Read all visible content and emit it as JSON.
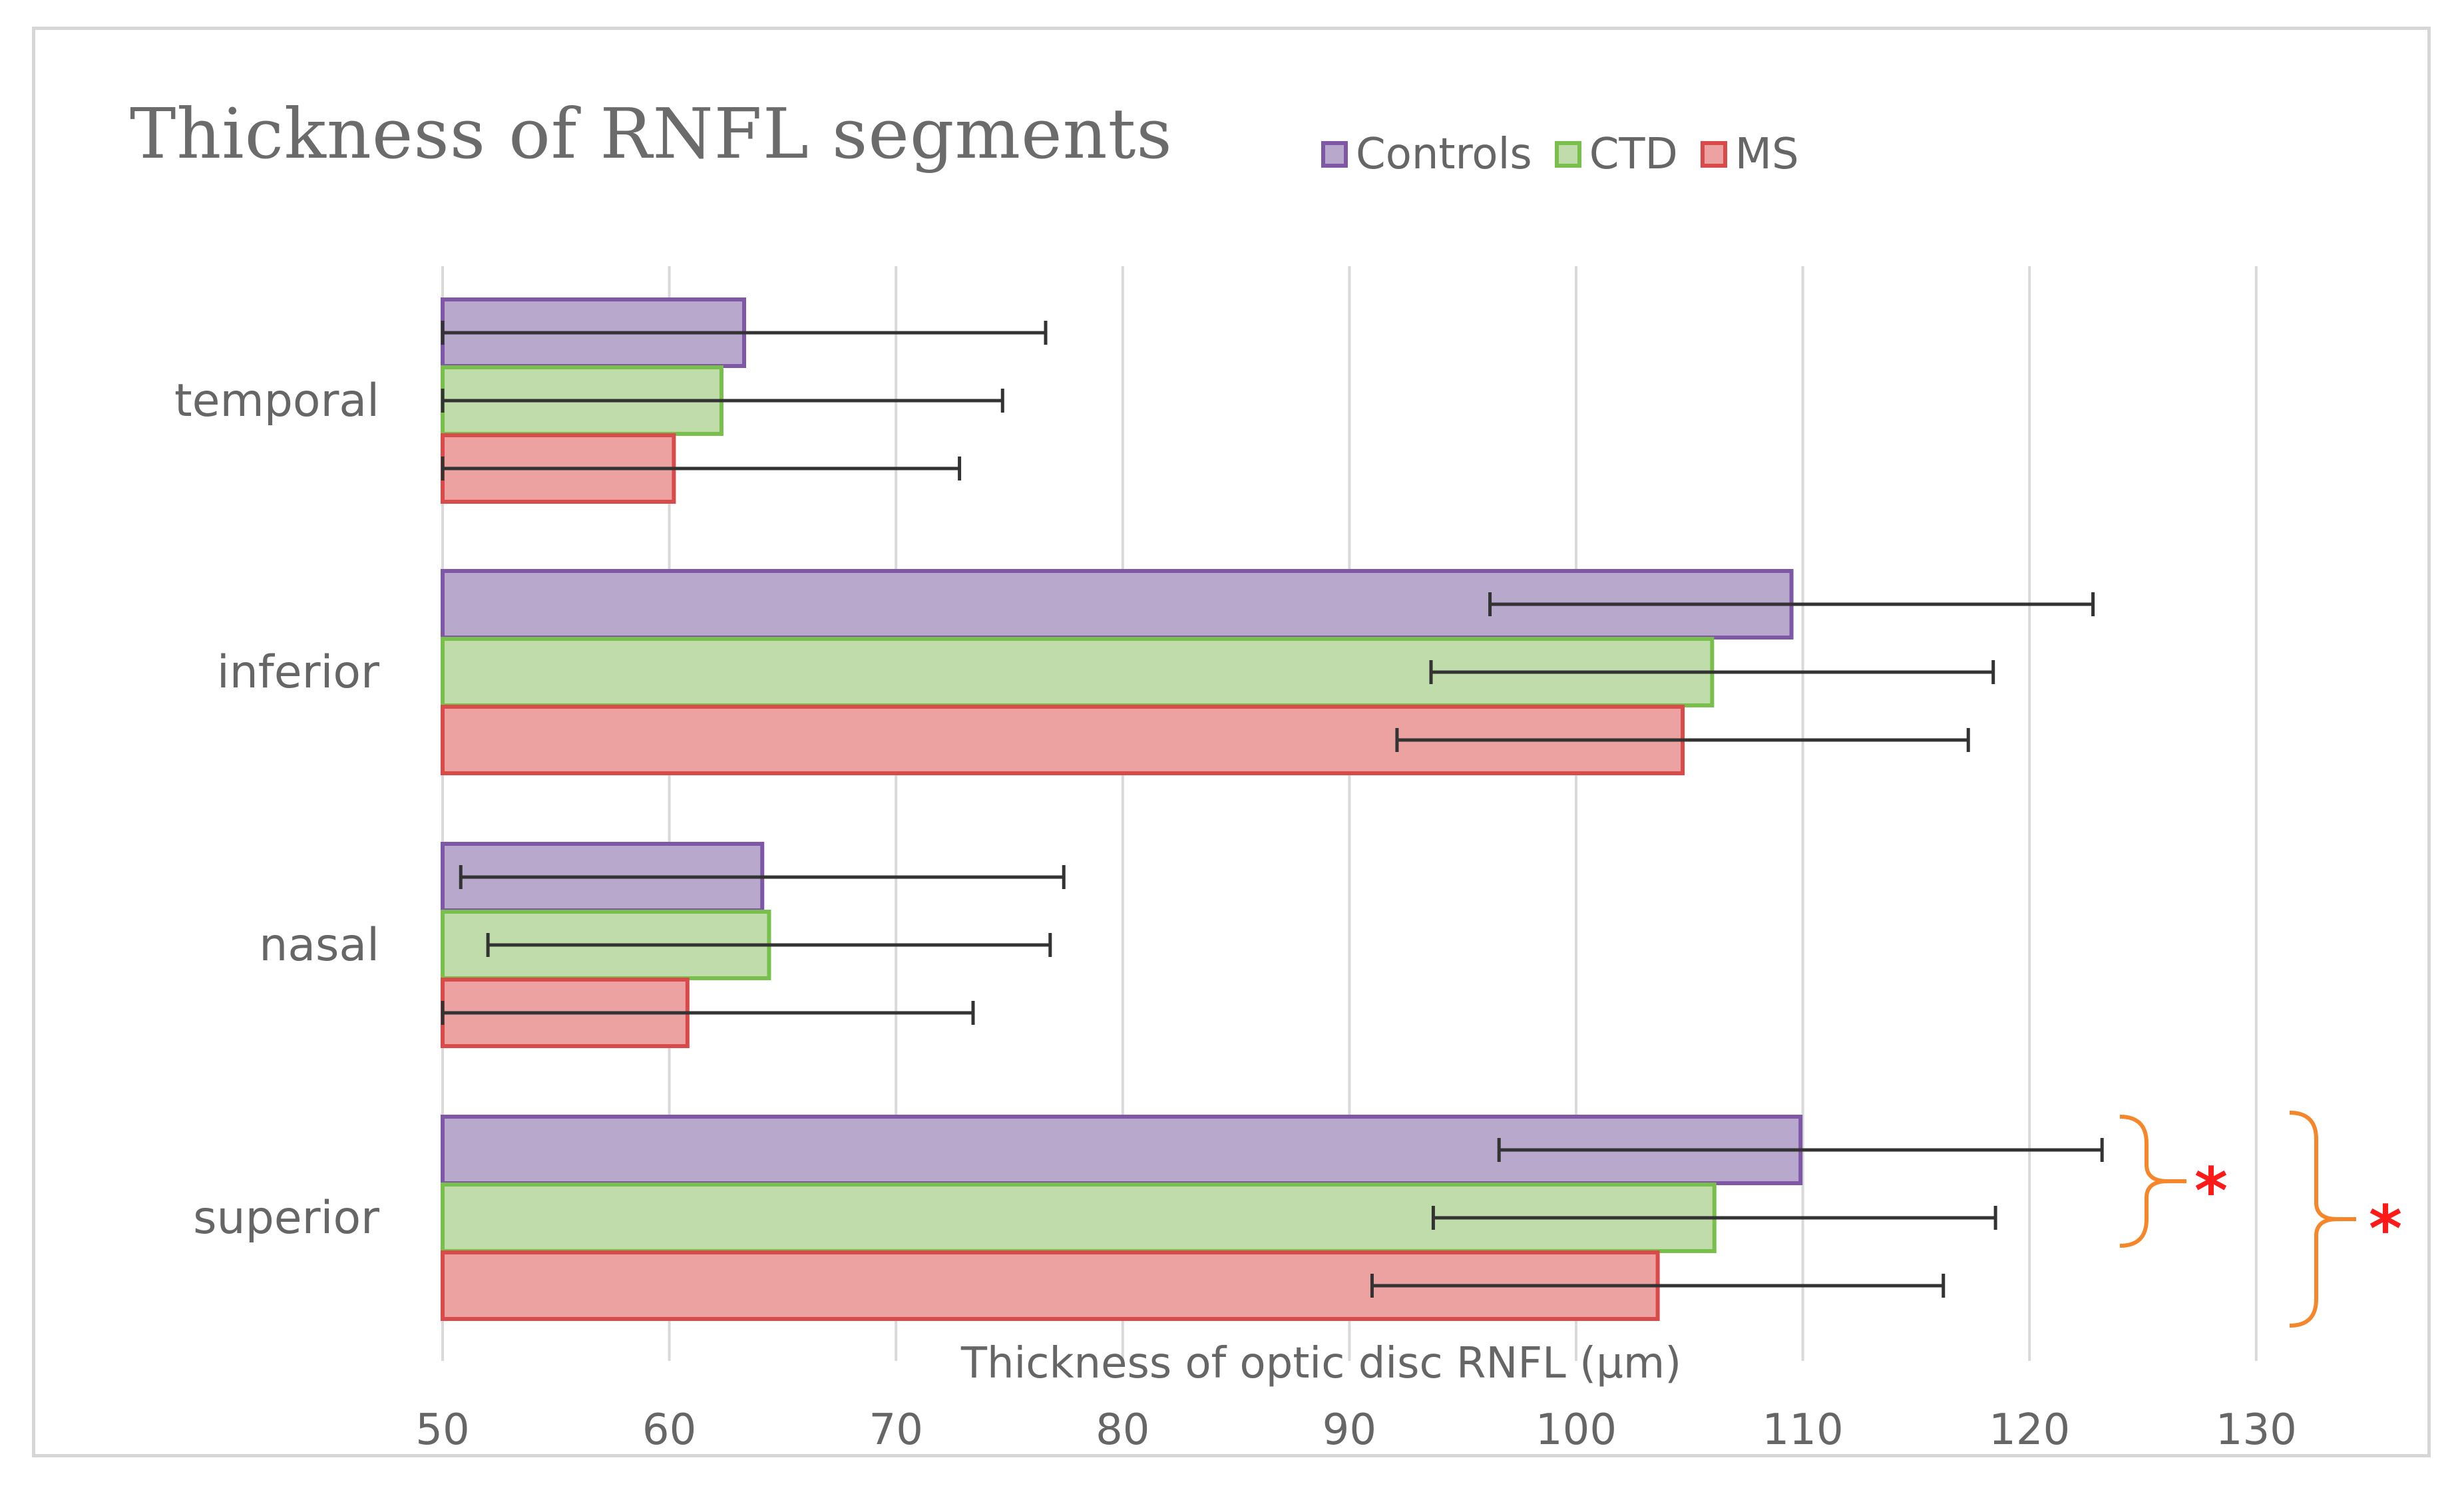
{
  "chart_data": {
    "type": "bar",
    "orientation": "horizontal",
    "title": "Thickness  of RNFL  segments",
    "xlabel": "Thickness of optic disc RNFL (µm)",
    "ylabel": "",
    "xlim": [
      50,
      135
    ],
    "x_ticks": [
      50,
      60,
      70,
      80,
      90,
      100,
      110,
      120,
      130
    ],
    "grid": true,
    "legend_position": "top",
    "categories": [
      "temporal",
      "inferior",
      "nasal",
      "superior"
    ],
    "series": [
      {
        "name": "Controls",
        "color": "#b8a8cc",
        "edge_color": "#7e57a6",
        "values": [
          63.3,
          109.5,
          64.1,
          109.9
        ],
        "error": [
          13.3,
          13.3,
          13.3,
          13.3
        ]
      },
      {
        "name": "CTD",
        "color": "#bfdcaa",
        "edge_color": "#79bf4c",
        "values": [
          62.3,
          106.0,
          64.4,
          106.1
        ],
        "error": [
          12.4,
          12.4,
          12.4,
          12.4
        ]
      },
      {
        "name": "MS",
        "color": "#eda2a2",
        "edge_color": "#d94a4a",
        "values": [
          60.2,
          104.7,
          60.8,
          103.6
        ],
        "error": [
          12.6,
          12.6,
          12.6,
          12.6
        ]
      }
    ],
    "annotations": [
      {
        "category": "superior",
        "between": [
          "Controls",
          "CTD"
        ],
        "text": "*",
        "color": "#ff1a1a",
        "bracket_color": "#f5862a"
      },
      {
        "category": "superior",
        "between": [
          "Controls",
          "MS"
        ],
        "text": "*",
        "color": "#ff1a1a",
        "bracket_color": "#f5862a"
      }
    ]
  }
}
